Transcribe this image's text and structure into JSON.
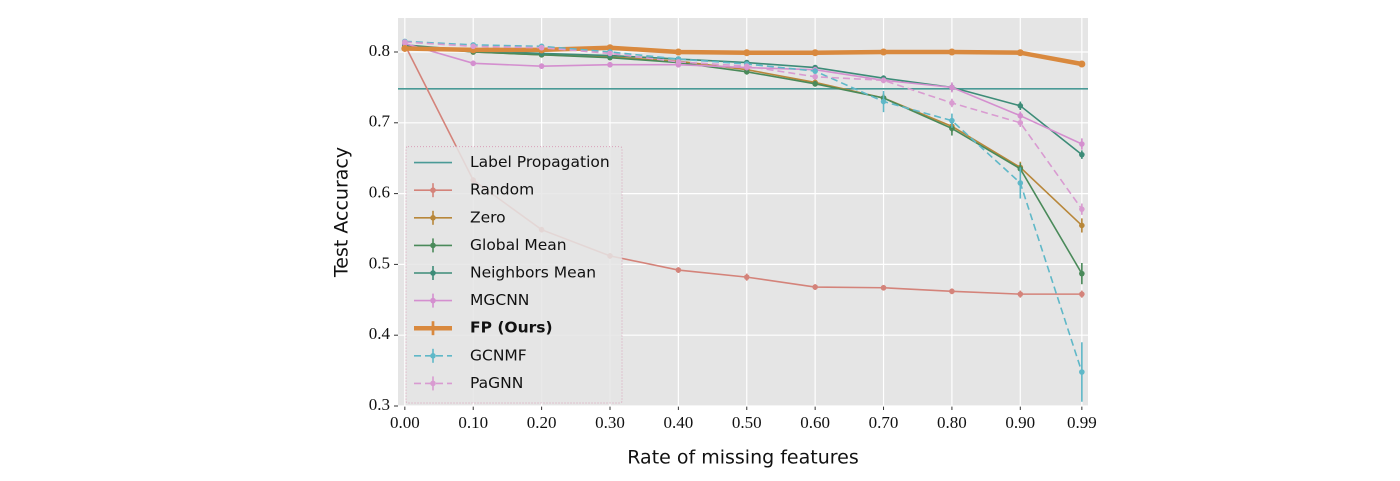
{
  "chart_data": {
    "type": "line",
    "x_label": "Rate of missing features",
    "y_label": "Test Accuracy",
    "x": [
      0.0,
      0.1,
      0.2,
      0.3,
      0.4,
      0.5,
      0.6,
      0.7,
      0.8,
      0.9,
      0.99
    ],
    "xlim": [
      -0.01,
      0.999
    ],
    "ylim": [
      0.3,
      0.848
    ],
    "xticks": [
      {
        "value": 0.0,
        "label": "0.00"
      },
      {
        "value": 0.1,
        "label": "0.10"
      },
      {
        "value": 0.2,
        "label": "0.20"
      },
      {
        "value": 0.3,
        "label": "0.30"
      },
      {
        "value": 0.4,
        "label": "0.40"
      },
      {
        "value": 0.5,
        "label": "0.50"
      },
      {
        "value": 0.6,
        "label": "0.60"
      },
      {
        "value": 0.7,
        "label": "0.70"
      },
      {
        "value": 0.8,
        "label": "0.80"
      },
      {
        "value": 0.9,
        "label": "0.90"
      },
      {
        "value": 0.99,
        "label": "0.99"
      }
    ],
    "yticks": [
      0.3,
      0.4,
      0.5,
      0.6,
      0.7,
      0.8
    ],
    "grid": true,
    "legend": "lower left",
    "series": [
      {
        "name": "Label Propagation",
        "color": "#4a9a96",
        "value": 0.748
      },
      {
        "name": "Random",
        "color": "#d4837a",
        "values": [
          0.81,
          0.619,
          0.549,
          0.512,
          0.492,
          0.482,
          0.468,
          0.467,
          0.462,
          0.458,
          0.458
        ],
        "errors": [
          0.004,
          0.004,
          0.004,
          0.004,
          0.004,
          0.005,
          0.004,
          0.004,
          0.004,
          0.005,
          0.005
        ]
      },
      {
        "name": "Zero",
        "color": "#b8873a",
        "values": [
          0.81,
          0.8,
          0.796,
          0.793,
          0.787,
          0.775,
          0.757,
          0.735,
          0.695,
          0.637,
          0.555
        ],
        "errors": [
          0.003,
          0.003,
          0.003,
          0.003,
          0.003,
          0.004,
          0.004,
          0.005,
          0.008,
          0.008,
          0.01
        ]
      },
      {
        "name": "Global Mean",
        "color": "#4a8a5a",
        "values": [
          0.808,
          0.8,
          0.796,
          0.792,
          0.785,
          0.772,
          0.755,
          0.735,
          0.692,
          0.635,
          0.487
        ],
        "errors": [
          0.003,
          0.003,
          0.003,
          0.003,
          0.003,
          0.004,
          0.004,
          0.006,
          0.01,
          0.008,
          0.015
        ]
      },
      {
        "name": "Neighbors Mean",
        "color": "#3d8c78",
        "values": [
          0.81,
          0.802,
          0.798,
          0.795,
          0.79,
          0.785,
          0.778,
          0.763,
          0.75,
          0.724,
          0.655
        ],
        "errors": [
          0.003,
          0.003,
          0.003,
          0.003,
          0.003,
          0.003,
          0.003,
          0.004,
          0.005,
          0.006,
          0.006
        ]
      },
      {
        "name": "MGCNN",
        "color": "#d48fcf",
        "values": [
          0.812,
          0.784,
          0.78,
          0.782,
          0.782,
          0.778,
          0.775,
          0.76,
          0.75,
          0.71,
          0.67
        ],
        "errors": [
          0.004,
          0.004,
          0.004,
          0.004,
          0.004,
          0.004,
          0.004,
          0.004,
          0.007,
          0.006,
          0.008
        ]
      },
      {
        "name": "FP (Ours)",
        "color": "#d9893e",
        "linewidth": 4.5,
        "bold": true,
        "values": [
          0.805,
          0.803,
          0.803,
          0.806,
          0.8,
          0.799,
          0.799,
          0.8,
          0.8,
          0.799,
          0.783
        ],
        "errors": [
          0.003,
          0.003,
          0.003,
          0.003,
          0.003,
          0.003,
          0.003,
          0.003,
          0.003,
          0.003,
          0.004
        ]
      },
      {
        "name": "GCNMF",
        "color": "#5fb8c8",
        "dash": true,
        "values": [
          0.815,
          0.81,
          0.808,
          0.8,
          0.79,
          0.783,
          0.773,
          0.73,
          0.703,
          0.615,
          0.348
        ],
        "errors": [
          0.003,
          0.003,
          0.003,
          0.003,
          0.003,
          0.003,
          0.004,
          0.015,
          0.01,
          0.022,
          0.042
        ]
      },
      {
        "name": "PaGNN",
        "color": "#d99bd1",
        "dash": true,
        "values": [
          0.814,
          0.808,
          0.806,
          0.798,
          0.786,
          0.78,
          0.765,
          0.76,
          0.728,
          0.7,
          0.578
        ],
        "errors": [
          0.003,
          0.003,
          0.003,
          0.003,
          0.003,
          0.003,
          0.004,
          0.004,
          0.006,
          0.006,
          0.008
        ]
      }
    ]
  }
}
